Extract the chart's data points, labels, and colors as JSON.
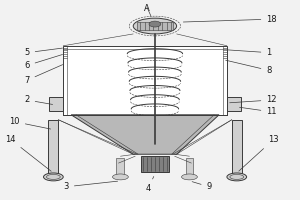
{
  "bg_color": "#f2f2f2",
  "line_color": "#3a3a3a",
  "fill_light": "#d0d0d0",
  "fill_dark": "#808080",
  "fill_white": "#ffffff",
  "fill_mid": "#b8b8b8",
  "fill_hatch": "#c0c0c0"
}
